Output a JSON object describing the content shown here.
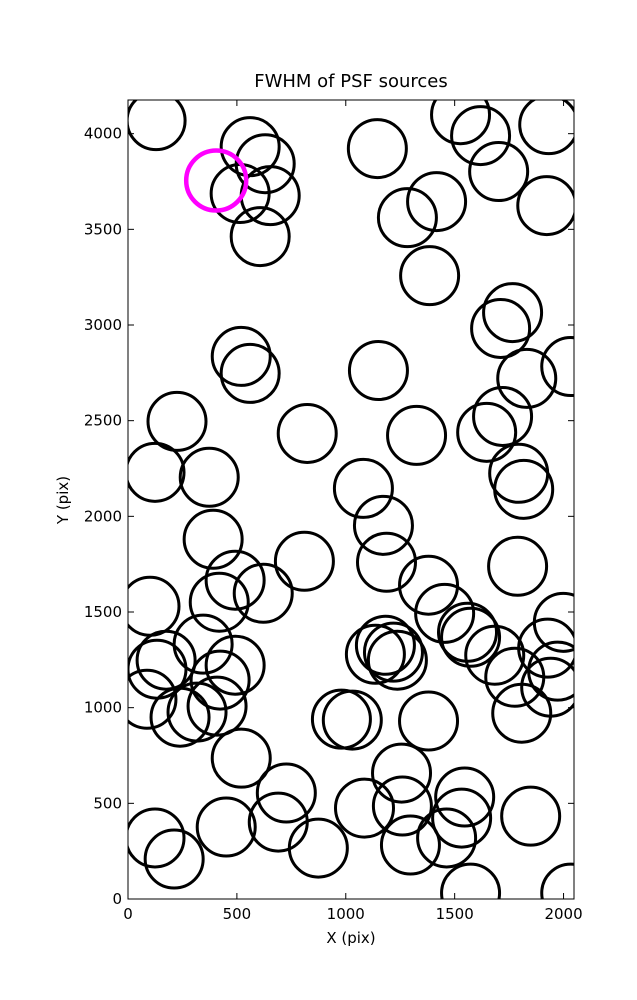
{
  "chart_data": {
    "type": "scatter",
    "title": "FWHM of PSF sources",
    "x_label": "X (pix)",
    "y_label": "Y (pix)",
    "xlim": [
      0,
      2048
    ],
    "ylim": [
      0,
      4176
    ],
    "xticks": [
      0,
      500,
      1000,
      1500,
      2000
    ],
    "yticks": [
      0,
      500,
      1000,
      1500,
      2000,
      2500,
      3000,
      3500,
      4000
    ],
    "series": [
      {
        "color": "#000000",
        "marker": "open-circle",
        "x": [
          129,
          561,
          630,
          515,
          653,
          607,
          1145,
          1283,
          1417,
          1527,
          1619,
          1702,
          1932,
          1923,
          1385,
          1766,
          1711,
          520,
          561,
          1150,
          1831,
          2033,
          225,
          823,
          1325,
          1647,
          1720,
          124,
          373,
          1794,
          1817,
          1081,
          1173,
          391,
          1187,
          810,
          1789,
          492,
          621,
          419,
          1380,
          101,
          1454,
          1559,
          1573,
          1684,
          1999,
          1927,
          1973,
          1941,
          1776,
          1808,
          345,
          175,
          133,
          492,
          423,
          409,
          87,
          239,
          317,
          1136,
          1182,
          1219,
          1237,
          980,
          1030,
          1380,
          520,
          727,
          1256,
          1546,
          1532,
          1260,
          1463,
          1297,
          1849,
          690,
          451,
          1086,
          874,
          124,
          212,
          1573,
          2033
        ],
        "y": [
          4068,
          3932,
          3843,
          3687,
          3676,
          3462,
          3922,
          3561,
          3645,
          4099,
          3990,
          3802,
          4047,
          3624,
          3258,
          3065,
          2982,
          2836,
          2747,
          2762,
          2721,
          2783,
          2496,
          2433,
          2423,
          2439,
          2522,
          2230,
          2204,
          2225,
          2141,
          2146,
          1953,
          1880,
          1760,
          1765,
          1739,
          1666,
          1598,
          1551,
          1640,
          1530,
          1493,
          1394,
          1368,
          1274,
          1446,
          1311,
          1191,
          1107,
          1159,
          971,
          1332,
          1248,
          1201,
          1222,
          1144,
          1008,
          1044,
          950,
          977,
          1279,
          1326,
          1290,
          1248,
          940,
          935,
          930,
          736,
          554,
          658,
          533,
          423,
          486,
          319,
          282,
          433,
          402,
          376,
          475,
          266,
          319,
          209,
          31,
          31
        ]
      },
      {
        "color": "#ff00ff",
        "marker": "open-circle",
        "x": [
          405
        ],
        "y": [
          3755
        ]
      }
    ]
  }
}
